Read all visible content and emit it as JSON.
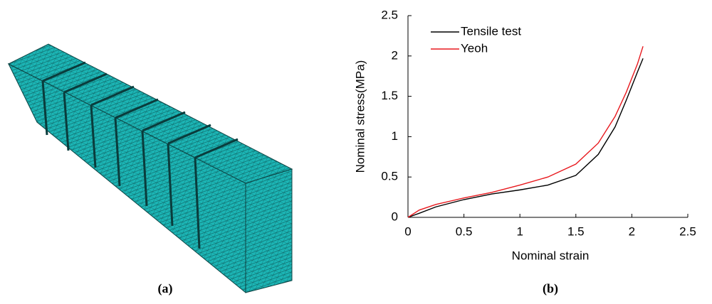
{
  "panels": [
    "(a)",
    "(b)"
  ],
  "chart_data": {
    "type": "line",
    "x_label": "Nominal strain",
    "y_label": "Nominal stress(MPa)",
    "x": [
      0,
      0.1,
      0.25,
      0.5,
      0.75,
      1,
      1.25,
      1.5,
      1.7,
      1.85,
      1.95,
      2.05,
      2.1
    ],
    "series": [
      {
        "name": "Tensile test",
        "color": "#000000",
        "values": [
          0,
          0.05,
          0.13,
          0.22,
          0.29,
          0.34,
          0.4,
          0.52,
          0.78,
          1.12,
          1.45,
          1.8,
          1.97
        ]
      },
      {
        "name": "Yeoh",
        "color": "#e8191e",
        "values": [
          0,
          0.09,
          0.16,
          0.24,
          0.31,
          0.4,
          0.5,
          0.66,
          0.92,
          1.25,
          1.55,
          1.9,
          2.12
        ]
      }
    ],
    "xlim": [
      0,
      2.5
    ],
    "ylim": [
      0,
      2.5
    ],
    "xticks": [
      0,
      0.5,
      1,
      1.5,
      2,
      2.5
    ],
    "yticks": [
      0,
      0.5,
      1,
      1.5,
      2,
      2.5
    ],
    "legend": "upper left"
  }
}
